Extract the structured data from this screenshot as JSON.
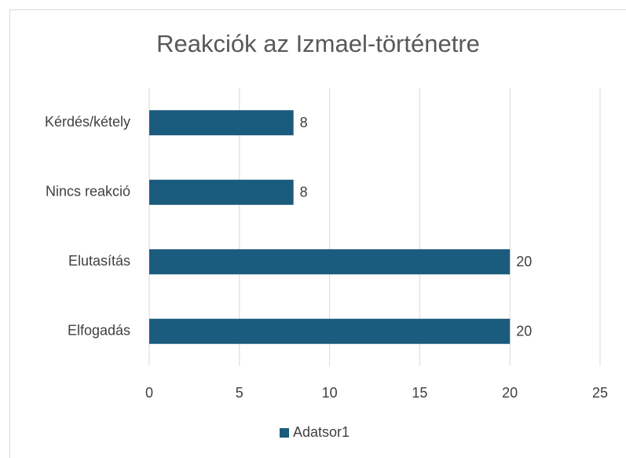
{
  "chart_data": {
    "type": "bar",
    "orientation": "horizontal",
    "title": "Reakciók az Izmael-történetre",
    "categories": [
      "Kérdés/kétely",
      "Nincs reakció",
      "Elutasítás",
      "Elfogadás"
    ],
    "series": [
      {
        "name": "Adatsor1",
        "color": "#1b5b7d",
        "values": [
          8,
          8,
          20,
          20
        ]
      }
    ],
    "xlim": [
      0,
      25
    ],
    "xticks": [
      0,
      5,
      10,
      15,
      20,
      25
    ],
    "grid": true,
    "legend": "bottom"
  }
}
